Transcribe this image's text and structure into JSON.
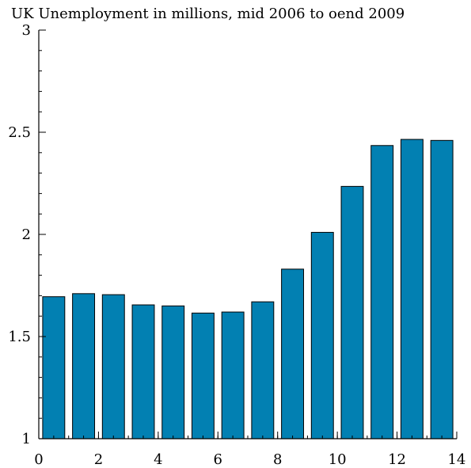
{
  "chart_data": {
    "type": "bar",
    "title": "UK Unemployment in millions, mid 2006 to oend 2009",
    "xlabel": "",
    "ylabel": "",
    "xlim": [
      0,
      14
    ],
    "ylim": [
      1,
      3
    ],
    "x_ticks": [
      0,
      2,
      4,
      6,
      8,
      10,
      12,
      14
    ],
    "y_ticks": [
      1,
      1.5,
      2,
      2.5,
      3
    ],
    "y_minor_step": 0.1,
    "x_minor_step": 0.5,
    "grid": false,
    "bar_color": "#0280b2",
    "bar_edge_color": "#000000",
    "categories": [
      0,
      1,
      2,
      3,
      4,
      5,
      6,
      7,
      8,
      9,
      10,
      11,
      12,
      13
    ],
    "values": [
      1.695,
      1.71,
      1.705,
      1.655,
      1.65,
      1.615,
      1.62,
      1.67,
      1.83,
      2.01,
      2.235,
      2.435,
      2.465,
      2.46
    ]
  }
}
